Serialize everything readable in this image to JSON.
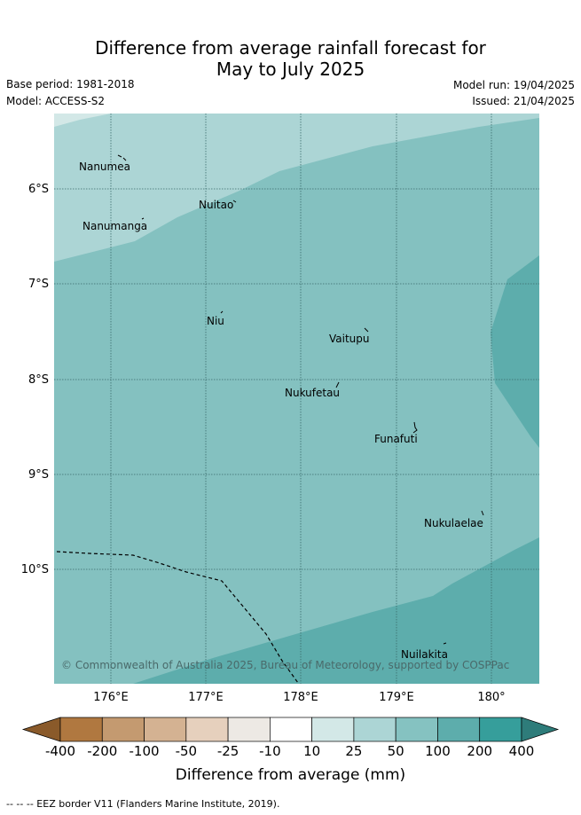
{
  "title": {
    "line1": "Difference from average rainfall forecast for",
    "line2": "May to July 2025"
  },
  "meta": {
    "base_period": "Base period: 1981-2018",
    "model": "Model: ACCESS-S2",
    "model_run": "Model run: 19/04/2025",
    "issued": "Issued: 21/04/2025"
  },
  "axes": {
    "lat_ticks": [
      "6°S",
      "7°S",
      "8°S",
      "9°S",
      "10°S"
    ],
    "lon_ticks": [
      "176°E",
      "177°E",
      "178°E",
      "179°E",
      "180°"
    ]
  },
  "islands": [
    {
      "name": "Nanumea"
    },
    {
      "name": "Nuitao"
    },
    {
      "name": "Nanumanga"
    },
    {
      "name": "Niu"
    },
    {
      "name": "Vaitupu"
    },
    {
      "name": "Nukufetau"
    },
    {
      "name": "Funafuti"
    },
    {
      "name": "Nukulaelae"
    },
    {
      "name": "Nuilakita"
    }
  ],
  "copyright": "© Commonwealth of Australia 2025, Bureau of Meteorology, supported by COSPPac",
  "colorbar": {
    "ticks": [
      "-400",
      "-200",
      "-100",
      "-50",
      "-25",
      "-10",
      "10",
      "25",
      "50",
      "100",
      "200",
      "400"
    ],
    "colors": [
      "#8a5a2a",
      "#b07840",
      "#c49a70",
      "#d4b292",
      "#e6d0bd",
      "#ede9e4",
      "#ffffff",
      "#d3e8e7",
      "#acd5d5",
      "#85c2c1",
      "#5dadac",
      "#369e9b",
      "#2e7c7a"
    ],
    "label": "Difference from average (mm)"
  },
  "footer": "--  --  -- EEZ border V11 (Flanders Marine Institute, 2019)."
}
